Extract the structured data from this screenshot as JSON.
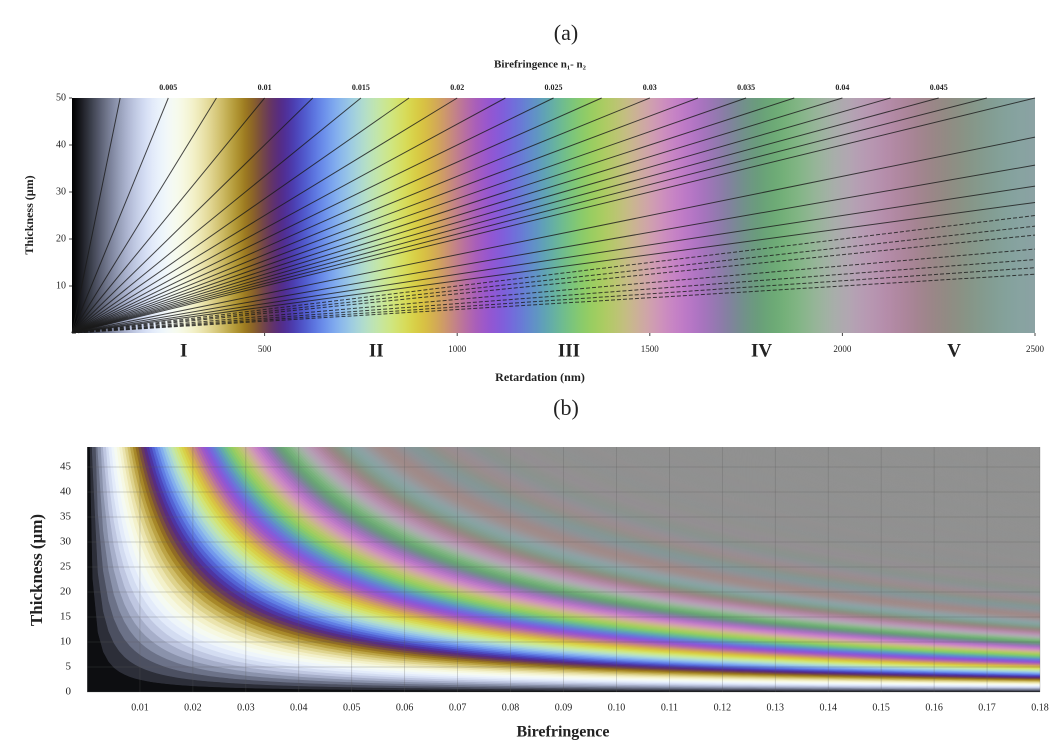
{
  "chart_data": [
    {
      "type": "line",
      "title": "(a)",
      "x2label": "Birefringence n₁- n₂",
      "xlabel": "Retardation (nm)",
      "ylabel": "Thickness (μm)",
      "xlim": [
        0,
        2500
      ],
      "xticks": [
        500,
        1000,
        1500,
        2000,
        2500
      ],
      "ylim": [
        0,
        50
      ],
      "yticks": [
        10,
        20,
        30,
        40,
        50
      ],
      "x2ticks": [
        0.005,
        0.01,
        0.015,
        0.02,
        0.025,
        0.03,
        0.035,
        0.04,
        0.045
      ],
      "orders": [
        "I",
        "II",
        "III",
        "IV",
        "V"
      ],
      "birefringence_lines": [
        0.0025,
        0.005,
        0.0075,
        0.01,
        0.0125,
        0.015,
        0.0175,
        0.02,
        0.0225,
        0.025,
        0.0275,
        0.03,
        0.0325,
        0.035,
        0.0375,
        0.04,
        0.0425,
        0.045,
        0.0475,
        0.05,
        0.06,
        0.07,
        0.08,
        0.09,
        0.1,
        0.11,
        0.12,
        0.14,
        0.16,
        0.18,
        0.2
      ],
      "line_color": "#1a1a1a"
    },
    {
      "type": "heatmap",
      "title": "(b)",
      "xlabel": "Birefringence",
      "ylabel": "Thickness (μm)",
      "xlim": [
        0,
        0.18
      ],
      "xticks": [
        0.01,
        0.02,
        0.03,
        0.04,
        0.05,
        0.06,
        0.07,
        0.08,
        0.09,
        {
          "value": 0.1,
          "label": "0.10"
        },
        0.11,
        0.12,
        0.13,
        0.14,
        0.15,
        0.16,
        0.17,
        0.18
      ],
      "ylim": [
        0,
        49
      ],
      "yticks": [
        0,
        5,
        10,
        15,
        20,
        25,
        30,
        35,
        40,
        45
      ],
      "grid": true
    }
  ]
}
